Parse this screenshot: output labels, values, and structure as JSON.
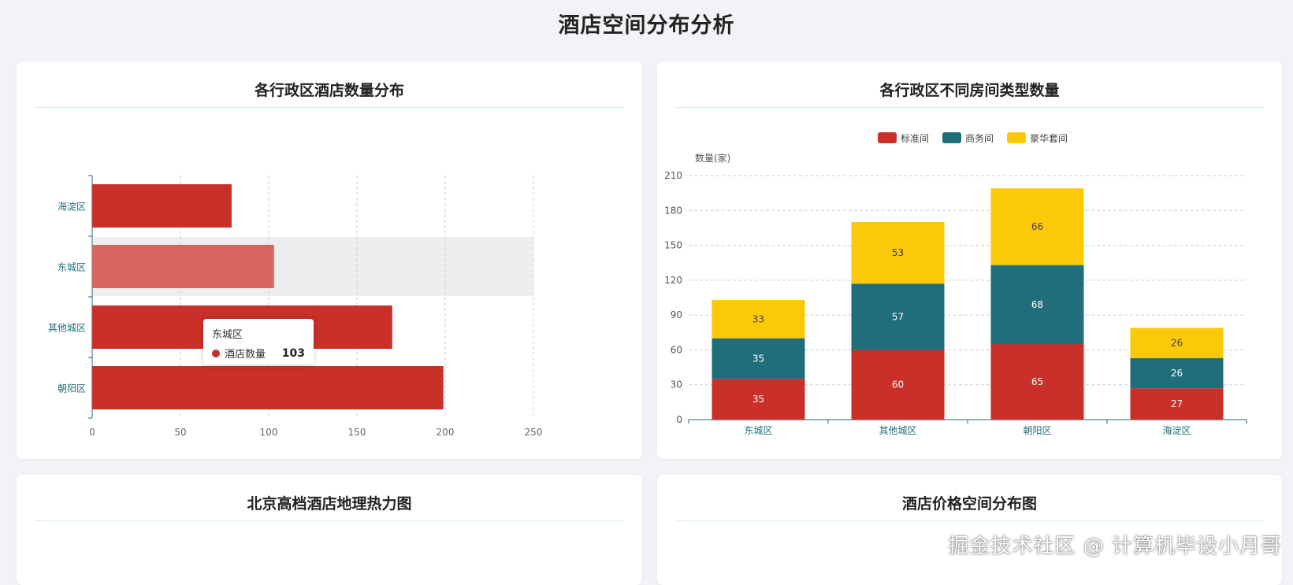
{
  "page": {
    "title": "酒店空间分布分析"
  },
  "cards": [
    {
      "title": "各行政区酒店数量分布"
    },
    {
      "title": "各行政区不同房间类型数量"
    },
    {
      "title": "北京高档酒店地理热力图"
    },
    {
      "title": "酒店价格空间分布图"
    }
  ],
  "tooltip": {
    "title": "东城区",
    "label": "酒店数量",
    "value": "103"
  },
  "watermark": "掘金技术社区 @ 计算机毕设小月哥",
  "chart_data": [
    {
      "type": "bar",
      "orientation": "horizontal",
      "title": "各行政区酒店数量分布",
      "categories": [
        "海淀区",
        "东城区",
        "其他城区",
        "朝阳区"
      ],
      "series": [
        {
          "name": "酒店数量",
          "values": [
            79,
            103,
            170,
            199
          ]
        }
      ],
      "xlim": [
        0,
        250
      ],
      "xticks": [
        0,
        50,
        100,
        150,
        200,
        250
      ],
      "highlighted_category": "东城区",
      "colors": {
        "bar": "#c9302a",
        "bar_highlight": "#d6665e",
        "axis": "#1f6e7a",
        "hover_band": "#eeeeee"
      },
      "grid": "vertical dashed"
    },
    {
      "type": "bar",
      "stacked": true,
      "title": "各行政区不同房间类型数量",
      "ylabel": "数量(家)",
      "categories": [
        "东城区",
        "其他城区",
        "朝阳区",
        "海淀区"
      ],
      "series": [
        {
          "name": "标准间",
          "color": "#c9302a",
          "values": [
            35,
            60,
            65,
            27
          ]
        },
        {
          "name": "商务间",
          "color": "#1f6e7a",
          "values": [
            35,
            57,
            68,
            26
          ]
        },
        {
          "name": "豪华套间",
          "color": "#fcc90a",
          "values": [
            33,
            53,
            66,
            26
          ]
        }
      ],
      "ylim": [
        0,
        210
      ],
      "yticks": [
        0,
        30,
        60,
        90,
        120,
        150,
        180,
        210
      ],
      "legend": "top",
      "grid": "horizontal dashed"
    }
  ]
}
